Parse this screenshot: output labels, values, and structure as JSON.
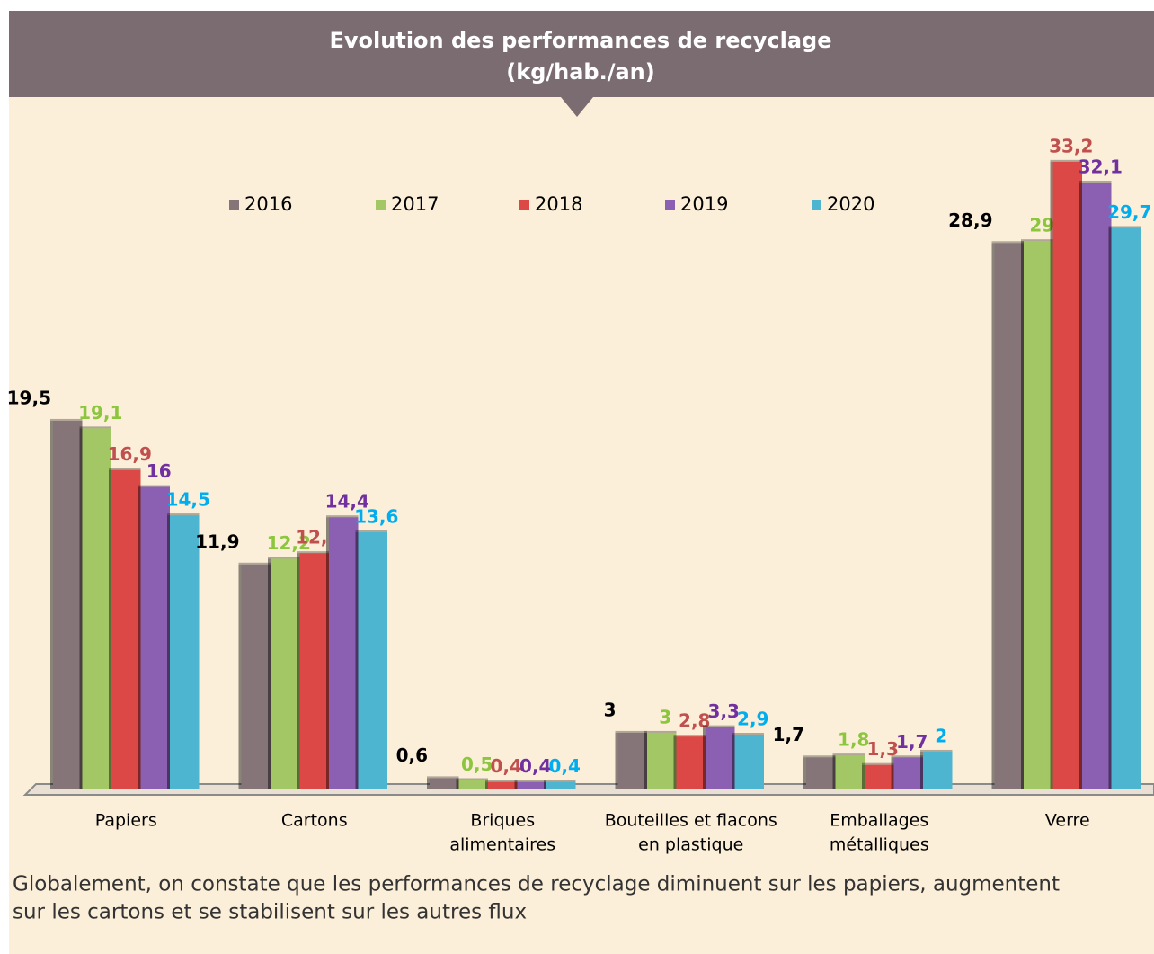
{
  "chart_data": {
    "type": "bar",
    "title": "Evolution des performances de recyclage",
    "subtitle": "(kg/hab./an)",
    "categories": [
      [
        "Papiers"
      ],
      [
        "Cartons"
      ],
      [
        "Briques",
        "alimentaires"
      ],
      [
        "Bouteilles et flacons",
        "en plastique"
      ],
      [
        "Emballages",
        "métalliques"
      ],
      [
        "Verre"
      ]
    ],
    "series": [
      {
        "name": "2016",
        "color": "#857478",
        "label_color": "#000000",
        "values": [
          19.5,
          11.9,
          0.6,
          3,
          1.7,
          28.9
        ],
        "value_labels": [
          "19,5",
          "11,9",
          "0,6",
          "3",
          "1,7",
          "28,9"
        ]
      },
      {
        "name": "2017",
        "color": "#a3c764",
        "label_color": "#8cc63f",
        "values": [
          19.1,
          12.2,
          0.5,
          3,
          1.8,
          29
        ],
        "value_labels": [
          "19,1",
          "12,2",
          "0,5",
          "3",
          "1,8",
          "29"
        ]
      },
      {
        "name": "2018",
        "color": "#dc4845",
        "label_color": "#c0504d",
        "values": [
          16.9,
          12.5,
          0.4,
          2.8,
          1.3,
          33.2
        ],
        "value_labels": [
          "16,9",
          "12,5",
          "0,4",
          "2,8",
          "1,3",
          "33,2"
        ]
      },
      {
        "name": "2019",
        "color": "#8b5fb2",
        "label_color": "#7030a0",
        "values": [
          16,
          14.4,
          0.4,
          3.3,
          1.7,
          32.1
        ],
        "value_labels": [
          "16",
          "14,4",
          "0,4",
          "3,3",
          "1,7",
          "32,1"
        ]
      },
      {
        "name": "2020",
        "color": "#4db5d0",
        "label_color": "#00aeef",
        "values": [
          14.5,
          13.6,
          0.4,
          2.9,
          2,
          29.7
        ],
        "value_labels": [
          "14,5",
          "13,6",
          "0,4",
          "2,9",
          "2",
          "29,7"
        ]
      }
    ],
    "ylim": [
      0,
      35
    ],
    "note": [
      "Globalement, on constate que les performances de recyclage diminuent sur les papiers, augmentent",
      "sur les cartons et se stabilisent sur les autres flux"
    ]
  }
}
